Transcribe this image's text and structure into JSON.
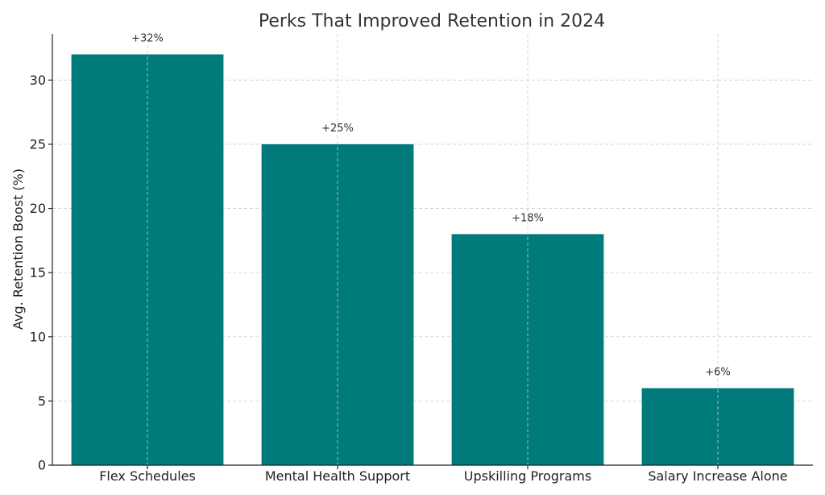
{
  "chart_data": {
    "type": "bar",
    "title": "Perks That Improved Retention in 2024",
    "xlabel": "",
    "ylabel": "Avg. Retention Boost (%)",
    "categories": [
      "Flex Schedules",
      "Mental Health Support",
      "Upskilling Programs",
      "Salary Increase Alone"
    ],
    "values": [
      32,
      25,
      18,
      6
    ],
    "data_labels": [
      "+32%",
      "+25%",
      "+18%",
      "+6%"
    ],
    "ylim": [
      0,
      33.6
    ],
    "yticks": [
      0,
      5,
      10,
      15,
      20,
      25,
      30
    ],
    "grid": true,
    "legend": "none",
    "bar_color": "#007a7a"
  }
}
